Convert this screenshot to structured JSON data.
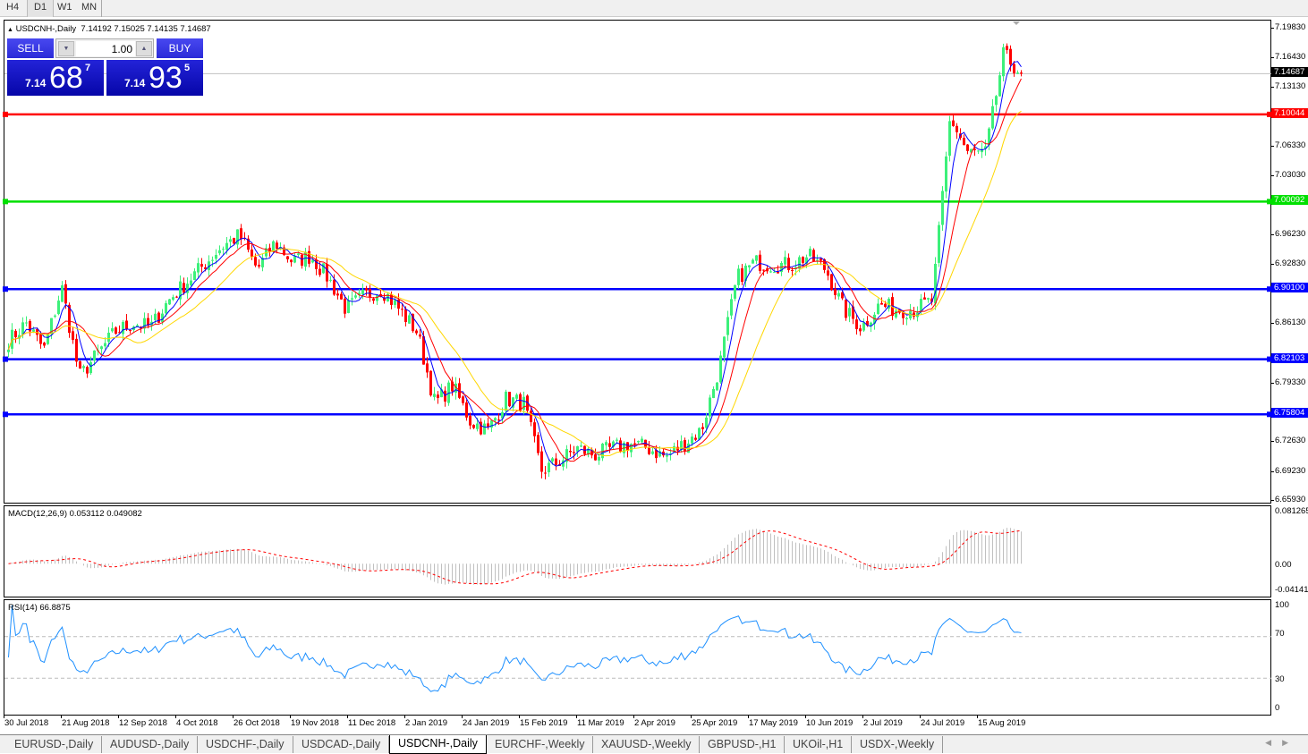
{
  "timeframes": [
    "H4",
    "D1",
    "W1",
    "MN"
  ],
  "active_timeframe": "D1",
  "chart": {
    "symbol_title": "USDCNH-,Daily",
    "ohlc": "7.14192 7.15025 7.14135 7.14687",
    "price_axis": [
      "7.19830",
      "7.16430",
      "7.13130",
      "7.06330",
      "7.03030",
      "6.96230",
      "6.92830",
      "6.86130",
      "6.79330",
      "6.72630",
      "6.69230",
      "6.65930"
    ],
    "price_axis_values": [
      7.1983,
      7.1643,
      7.1313,
      7.0633,
      7.0303,
      6.9623,
      6.9283,
      6.8613,
      6.7933,
      6.7263,
      6.6923,
      6.6593
    ],
    "price_range": [
      6.6593,
      7.1983
    ],
    "current_price": {
      "label": "7.14687",
      "value": 7.14687
    },
    "levels": [
      {
        "label": "7.10044",
        "value": 7.10044,
        "color": "#ff0000"
      },
      {
        "label": "7.00092",
        "value": 7.00092,
        "color": "#00e000"
      },
      {
        "label": "6.90100",
        "value": 6.901,
        "color": "#0000ff"
      },
      {
        "label": "6.82103",
        "value": 6.82103,
        "color": "#0000ff"
      },
      {
        "label": "6.75804",
        "value": 6.75804,
        "color": "#0000ff"
      }
    ],
    "closes_approx": [
      6.842,
      6.8625,
      6.8318,
      6.9033,
      6.8012,
      6.8267,
      6.8522,
      6.8625,
      6.8574,
      6.888,
      6.9084,
      6.9288,
      6.9492,
      6.9625,
      6.9237,
      6.9543,
      6.9319,
      6.939,
      6.9135,
      6.8778,
      6.8931,
      6.9012,
      6.8778,
      6.8522,
      6.7706,
      6.791,
      6.7502,
      6.74,
      6.7757,
      6.7706,
      6.694,
      6.7042,
      6.7195,
      6.7114,
      6.7195,
      6.7246,
      6.7195,
      6.7093,
      6.7246,
      6.74,
      6.8114,
      6.9135,
      6.9319,
      6.9288,
      6.9288,
      6.939,
      6.9237,
      6.8778,
      6.8574,
      6.8829,
      6.8778,
      6.8778,
      6.888,
      7.0972,
      7.0564,
      7.0564,
      7.1687,
      7.14687
    ],
    "colors": {
      "bull": "#3cf07a",
      "bear": "#ff0000",
      "ma_fast": "#0000ff",
      "ma_mid": "#ff0000",
      "ma_slow": "#ffd700"
    },
    "dates": [
      "30 Jul 2018",
      "21 Aug 2018",
      "12 Sep 2018",
      "4 Oct 2018",
      "26 Oct 2018",
      "19 Nov 2018",
      "11 Dec 2018",
      "2 Jan 2019",
      "24 Jan 2019",
      "15 Feb 2019",
      "11 Mar 2019",
      "2 Apr 2019",
      "25 Apr 2019",
      "17 May 2019",
      "10 Jun 2019",
      "2 Jul 2019",
      "24 Jul 2019",
      "15 Aug 2019"
    ]
  },
  "trade_panel": {
    "sell_label": "SELL",
    "buy_label": "BUY",
    "lot": "1.00",
    "sell": {
      "big": "7.14",
      "main": "68",
      "sup": "7"
    },
    "buy": {
      "big": "7.14",
      "main": "93",
      "sup": "5"
    }
  },
  "macd": {
    "title": "MACD(12,26,9) 0.053112 0.049082",
    "axis": [
      "0.081265",
      "0.00",
      "-0.041412"
    ],
    "range": [
      -0.041412,
      0.081265
    ]
  },
  "rsi": {
    "title": "RSI(14) 66.8875",
    "axis": [
      "100",
      "70",
      "30",
      "0"
    ],
    "levels": [
      70,
      30
    ]
  },
  "tabs": [
    "EURUSD-,Daily",
    "AUDUSD-,Daily",
    "USDCHF-,Daily",
    "USDCAD-,Daily",
    "USDCNH-,Daily",
    "EURCHF-,Weekly",
    "XAUUSD-,Weekly",
    "GBPUSD-,H1",
    "UKOil-,H1",
    "USDX-,Weekly"
  ],
  "active_tab": "USDCNH-,Daily"
}
